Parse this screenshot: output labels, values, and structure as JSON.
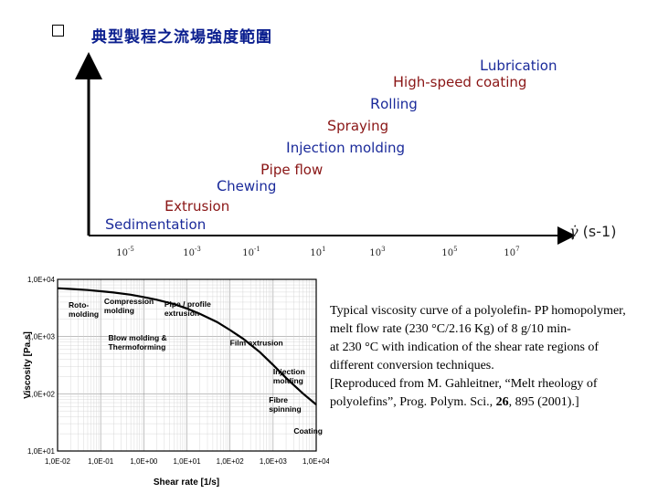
{
  "title": "典型製程之流場強度範圍",
  "processes": [
    {
      "initial": "L",
      "rest": "ubrication",
      "color": "#1a2a9a"
    },
    {
      "initial": "H",
      "rest": "igh-speed coating",
      "color": "#8a1616"
    },
    {
      "initial": "R",
      "rest": "olling",
      "color": "#1a2a9a"
    },
    {
      "initial": "S",
      "rest": "praying",
      "color": "#8a1616"
    },
    {
      "initial": "I",
      "rest": "njection molding",
      "color": "#1a2a9a"
    },
    {
      "initial": "P",
      "rest": "ipe flow",
      "color": "#8a1616"
    },
    {
      "initial": "C",
      "rest": "hewing",
      "color": "#1a2a9a"
    },
    {
      "initial": "E",
      "rest": "xtrusion",
      "color": "#8a1616"
    },
    {
      "initial": "S",
      "rest": "edimentation",
      "color": "#1a2a9a"
    }
  ],
  "shear_axis": {
    "unit_symbol": "γ̇",
    "unit": "(s-1)",
    "ticks": [
      "10-5",
      "10-3",
      "10-1",
      "101",
      "103",
      "105",
      "107"
    ]
  },
  "chart_data": {
    "type": "line",
    "x": [
      0.01,
      0.02,
      0.05,
      0.1,
      0.2,
      0.5,
      1,
      2,
      5,
      10,
      20,
      50,
      100,
      200,
      500,
      1000,
      2000,
      5000,
      10000
    ],
    "series": [
      {
        "name": "Viscosity",
        "values": [
          7000,
          6800,
          6500,
          6200,
          5900,
          5400,
          4900,
          4400,
          3700,
          3100,
          2500,
          1800,
          1300,
          920,
          530,
          320,
          190,
          100,
          65
        ]
      }
    ],
    "title": "",
    "xlabel": "Shear rate [1/s]",
    "ylabel": "Viscosity [Pa.s]",
    "xlim": [
      0.01,
      10000
    ],
    "ylim": [
      10,
      10000
    ],
    "xscale": "log",
    "yscale": "log",
    "xtick_labels": [
      "1,0E-02",
      "1,0E-01",
      "1,0E+00",
      "1,0E+01",
      "1,0E+02",
      "1,0E+03",
      "1,0E+04"
    ],
    "ytick_labels": [
      "1,0E+01",
      "1,0E+02",
      "1,0E+03",
      "1,0E+04"
    ],
    "grid": true,
    "annotations": [
      {
        "lines": [
          "Roto-",
          "molding"
        ],
        "x": 0.018,
        "y": 3200
      },
      {
        "lines": [
          "Compression",
          "molding"
        ],
        "x": 0.12,
        "y": 3700
      },
      {
        "lines": [
          "Pipe / profile",
          "extrusion"
        ],
        "x": 3,
        "y": 3300
      },
      {
        "lines": [
          "Blow molding &",
          "Thermoforming"
        ],
        "x": 0.15,
        "y": 850
      },
      {
        "lines": [
          "Film extrusion"
        ],
        "x": 100,
        "y": 700
      },
      {
        "lines": [
          "Injection",
          "molding"
        ],
        "x": 1000,
        "y": 220
      },
      {
        "lines": [
          "Fibre",
          "spinning"
        ],
        "x": 800,
        "y": 70
      },
      {
        "lines": [
          "Coating"
        ],
        "x": 3000,
        "y": 20
      }
    ]
  },
  "caption": {
    "line1": "Typical viscosity curve of a polyolefin- PP homopolymer, melt flow rate (230 °C/2.16 Kg) of 8 g/10 min-",
    "line2": "at 230 °C with indication of the shear rate regions of different conversion techniques.",
    "ref_pre": "[Reproduced from M. Gahleitner, “Melt rheology of polyolefins”, Prog. Polym. Sci., ",
    "ref_vol": "26",
    "ref_post": ", 895 (2001).]"
  }
}
